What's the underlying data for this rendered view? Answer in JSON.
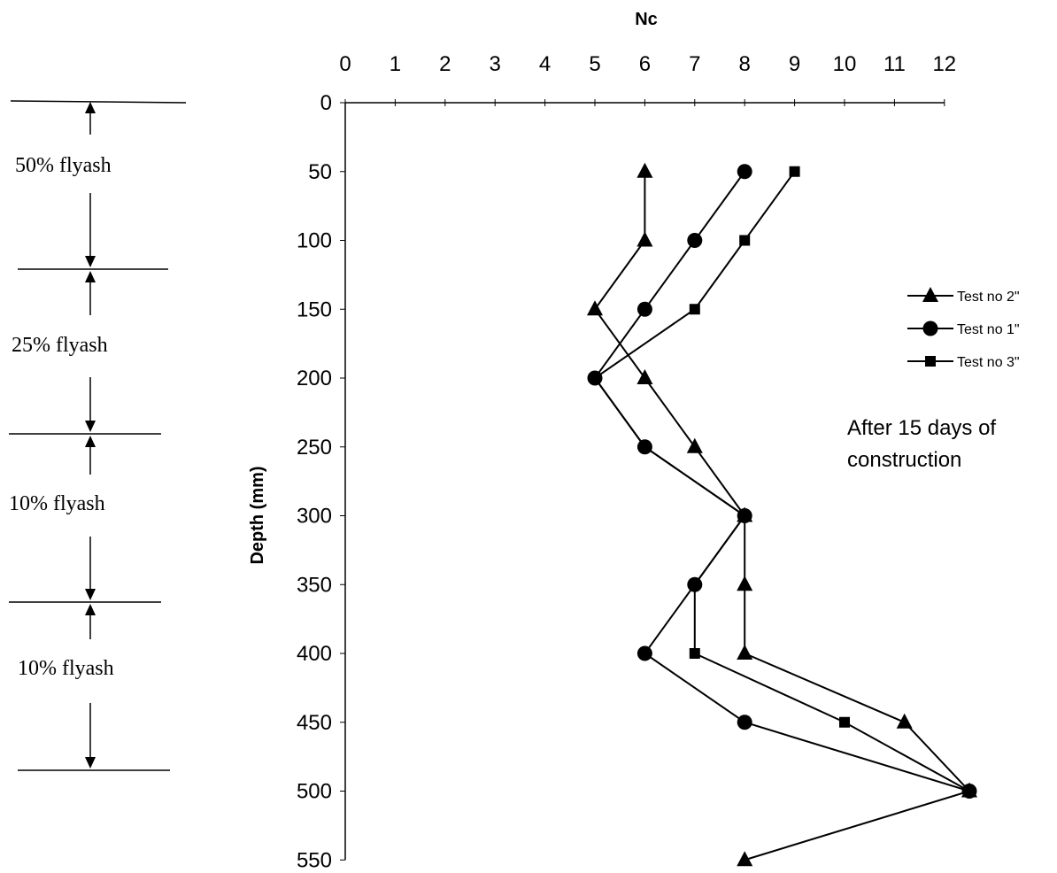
{
  "chart_data": {
    "type": "line",
    "title": "",
    "xlabel": "Nc",
    "ylabel": "Depth (mm)",
    "xlim": [
      0,
      12
    ],
    "ylim": [
      0,
      550
    ],
    "y_inverted": true,
    "x_axis_position": "top",
    "grid": false,
    "xticks": [
      "0",
      "1",
      "2",
      "3",
      "4",
      "5",
      "6",
      "7",
      "8",
      "9",
      "10",
      "11",
      "12"
    ],
    "yticks": [
      "0",
      "50",
      "100",
      "150",
      "200",
      "250",
      "300",
      "350",
      "400",
      "450",
      "500",
      "550"
    ],
    "legend": {
      "position": "right",
      "entries": [
        "Test no 2\"",
        "Test no 1\"",
        "Test no 3\""
      ]
    },
    "annotation": [
      "After 15 days of",
      "construction"
    ],
    "series": [
      {
        "name": "Test no 2\"",
        "marker": "triangle",
        "points": [
          [
            6,
            50
          ],
          [
            6,
            100
          ],
          [
            5,
            150
          ],
          [
            6,
            200
          ],
          [
            7,
            250
          ],
          [
            8,
            300
          ],
          [
            8,
            350
          ],
          [
            8,
            400
          ],
          [
            11.2,
            450
          ],
          [
            12.5,
            500
          ],
          [
            8,
            550
          ]
        ]
      },
      {
        "name": "Test no 1\"",
        "marker": "circle",
        "points": [
          [
            8,
            50
          ],
          [
            7,
            100
          ],
          [
            6,
            150
          ],
          [
            5,
            200
          ],
          [
            6,
            250
          ],
          [
            8,
            300
          ],
          [
            7,
            350
          ],
          [
            6,
            400
          ],
          [
            8,
            450
          ],
          [
            12.5,
            500
          ]
        ]
      },
      {
        "name": "Test no 3\"",
        "marker": "square",
        "points": [
          [
            9,
            50
          ],
          [
            8,
            100
          ],
          [
            7,
            150
          ],
          [
            5,
            200
          ],
          [
            6,
            250
          ],
          [
            8,
            300
          ],
          [
            7,
            350
          ],
          [
            7,
            400
          ],
          [
            10,
            450
          ],
          [
            12.5,
            500
          ]
        ]
      }
    ]
  },
  "layers": [
    {
      "label": "50% flyash"
    },
    {
      "label": "25% flyash"
    },
    {
      "label": "10% flyash"
    },
    {
      "label": "10% flyash"
    }
  ]
}
